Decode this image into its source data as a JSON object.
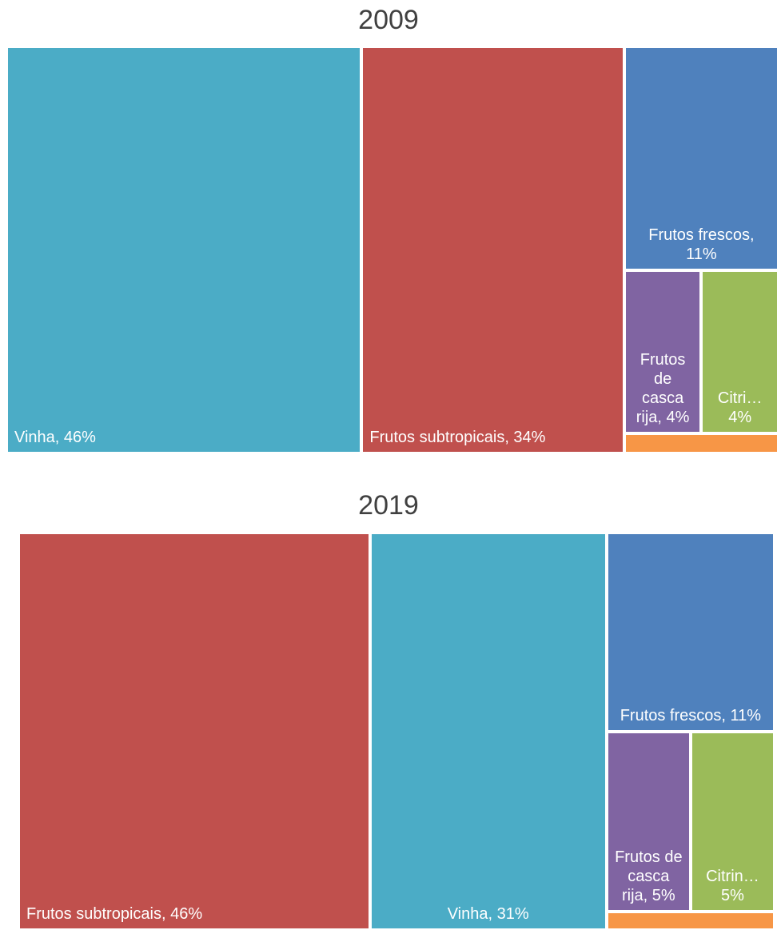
{
  "chart_data": [
    {
      "type": "treemap",
      "title": "2009",
      "labels": [
        "Vinha, 46%",
        "Frutos subtropicais, 34%",
        "Frutos frescos, 11%",
        "Frutos de casca rija, 4%",
        "Citri… 4%",
        null
      ],
      "values": [
        46,
        34,
        11,
        4,
        4,
        1
      ],
      "colors": [
        "#4bacc6",
        "#c0504d",
        "#4f81bd",
        "#8064a2",
        "#9bbb59",
        "#f79646"
      ]
    },
    {
      "type": "treemap",
      "title": "2019",
      "labels": [
        "Frutos subtropicais, 46%",
        "Vinha, 31%",
        "Frutos frescos, 11%",
        "Frutos de casca rija, 5%",
        "Citrin… 5%",
        null
      ],
      "values": [
        46,
        31,
        11,
        5,
        5,
        1
      ],
      "colors": [
        "#c0504d",
        "#4bacc6",
        "#4f81bd",
        "#8064a2",
        "#9bbb59",
        "#f79646"
      ]
    }
  ]
}
